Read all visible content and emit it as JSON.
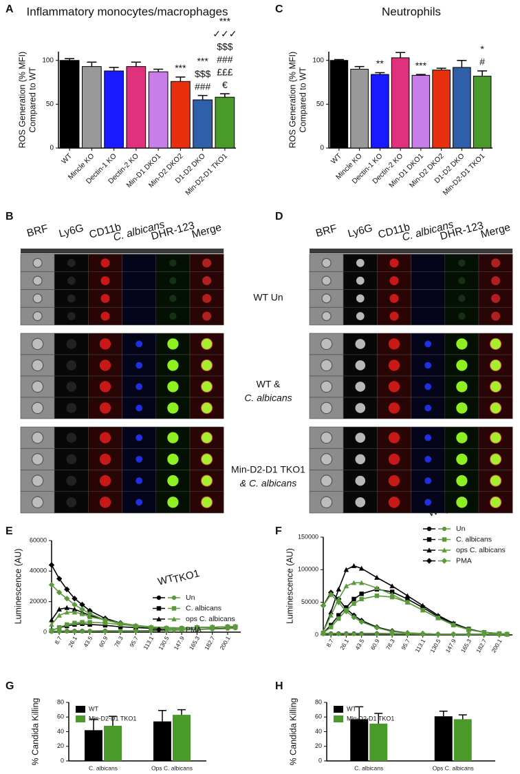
{
  "chart_data": [
    {
      "panel": "A",
      "type": "bar",
      "title": "Inflammatory monocytes/macrophages",
      "y_label": [
        "ROS Generation (% MFI)",
        "Compared to WT"
      ],
      "categories": [
        "WT",
        "Mincle KO",
        "Dectin-1 KO",
        "Dectin-2 KO",
        "Min-D1 DKO1",
        "Min-D2 DKO2",
        "D1-D2 DKO",
        "Min-D2-D1 TKO1"
      ],
      "values": [
        100,
        93,
        88,
        93,
        87,
        76,
        55,
        58
      ],
      "errors": [
        2,
        5,
        4,
        5,
        3,
        5,
        5,
        4
      ],
      "colors": [
        "#000000",
        "#999999",
        "#1a1aff",
        "#e0317e",
        "#c77ee8",
        "#e8300e",
        "#2f5fa8",
        "#4a9a2a"
      ],
      "annotations": [
        [],
        [],
        [],
        [],
        [],
        [
          {
            "text": "***",
            "color": "#000000"
          }
        ],
        [
          {
            "text": "***",
            "color": "#000000"
          },
          {
            "text": "$$$",
            "color": "#3a4fd8"
          },
          {
            "text": "###",
            "color": "#c850c0"
          }
        ],
        [
          {
            "text": "***",
            "color": "#000000"
          },
          {
            "text": "✓✓✓",
            "color": "#888888"
          },
          {
            "text": "$$$",
            "color": "#3a4fd8"
          },
          {
            "text": "###",
            "color": "#c850c0"
          },
          {
            "text": "£££",
            "color": "#c89ee0"
          },
          {
            "text": "€",
            "color": "#d02020"
          }
        ]
      ],
      "ylim": [
        0,
        110
      ],
      "yticks": [
        0,
        50,
        100
      ]
    },
    {
      "panel": "C",
      "type": "bar",
      "title": "Neutrophils",
      "y_label": [
        "ROS Generation (% MFI)",
        "Compared to WT"
      ],
      "categories": [
        "WT",
        "Mincle KO",
        "Dectin-1 KO",
        "Dectin-2 KO",
        "Min-D1 DKO1",
        "Min-D2 DKO2",
        "D1-D2 DKO",
        "Min-D2-D1 TKO1"
      ],
      "values": [
        100,
        90,
        84,
        103,
        83,
        89,
        92,
        82
      ],
      "errors": [
        1,
        3,
        2,
        6,
        1,
        2,
        8,
        6
      ],
      "colors": [
        "#000000",
        "#999999",
        "#1a1aff",
        "#e0317e",
        "#c77ee8",
        "#e8300e",
        "#2f5fa8",
        "#4a9a2a"
      ],
      "annotations": [
        [],
        [],
        [
          {
            "text": "**",
            "color": "#000000"
          }
        ],
        [],
        [
          {
            "text": "***",
            "color": "#000000"
          }
        ],
        [],
        [],
        [
          {
            "text": "*",
            "color": "#000000"
          },
          {
            "text": "#",
            "color": "#e0317e"
          }
        ]
      ],
      "ylim": [
        0,
        110
      ],
      "yticks": [
        0,
        50,
        100
      ]
    },
    {
      "panel": "E",
      "type": "line",
      "y_label": "Luminescence (AU)",
      "x": [
        0,
        8.7,
        17.4,
        26.1,
        34.8,
        43.5,
        60.9,
        78.3,
        95.7,
        113.1,
        130.5,
        147.9,
        165.3,
        182.7,
        200.1,
        208.8
      ],
      "xlim": [
        0,
        215
      ],
      "xticks": [
        8.7,
        26.1,
        43.5,
        60.9,
        78.3,
        95.7,
        113.1,
        130.5,
        147.9,
        165.3,
        182.7,
        200.1
      ],
      "ylim": [
        0,
        60000
      ],
      "yticks": [
        0,
        20000,
        40000,
        60000
      ],
      "series": [
        {
          "name": "Un",
          "group": "WT",
          "color": "#000000",
          "marker": "circle",
          "values": [
            500,
            600,
            700,
            700,
            700,
            700,
            800,
            800,
            900,
            1000,
            1200,
            1500,
            1800,
            2200,
            2500,
            2800
          ]
        },
        {
          "name": "C. albicans",
          "group": "WT",
          "color": "#000000",
          "marker": "square",
          "values": [
            1000,
            3000,
            4000,
            5000,
            5500,
            5000,
            4500,
            3500,
            3000,
            2500,
            2500,
            2500,
            3000,
            3000,
            3500,
            3500
          ]
        },
        {
          "name": "ops C. albicans",
          "group": "WT",
          "color": "#000000",
          "marker": "triangle",
          "values": [
            8000,
            15000,
            16000,
            15000,
            13000,
            11000,
            8000,
            6000,
            4000,
            3000,
            2500,
            2500,
            3000,
            3200,
            3500,
            3600
          ]
        },
        {
          "name": "PMA",
          "group": "WT",
          "color": "#000000",
          "marker": "diamond",
          "values": [
            44000,
            35000,
            28000,
            22000,
            18000,
            14000,
            9000,
            6000,
            4000,
            3000,
            2500,
            2500,
            3000,
            3200,
            3500,
            3600
          ]
        },
        {
          "name": "Un",
          "group": "TKO1",
          "color": "#5a9a3a",
          "marker": "circle",
          "values": [
            300,
            400,
            500,
            500,
            500,
            600,
            600,
            700,
            800,
            900,
            1100,
            1400,
            1700,
            2000,
            2300,
            2600
          ]
        },
        {
          "name": "C. albicans",
          "group": "TKO1",
          "color": "#5a9a3a",
          "marker": "square",
          "values": [
            1000,
            3000,
            5000,
            6000,
            6500,
            6500,
            6000,
            5000,
            4000,
            3000,
            2500,
            2500,
            3000,
            3200,
            3500,
            3600
          ]
        },
        {
          "name": "ops C. albicans",
          "group": "TKO1",
          "color": "#5a9a3a",
          "marker": "triangle",
          "values": [
            5000,
            11000,
            13000,
            13000,
            12000,
            10000,
            8000,
            6000,
            4500,
            3500,
            3000,
            2800,
            3000,
            3200,
            3500,
            3700
          ]
        },
        {
          "name": "PMA",
          "group": "TKO1",
          "color": "#5a9a3a",
          "marker": "diamond",
          "values": [
            31000,
            26000,
            22000,
            18000,
            15000,
            12000,
            8000,
            5500,
            4000,
            3000,
            2500,
            2500,
            3000,
            3200,
            3500,
            3600
          ]
        }
      ]
    },
    {
      "panel": "F",
      "type": "line",
      "y_label": "Luminescence (AU)",
      "x": [
        0,
        8.7,
        17.4,
        26.1,
        34.8,
        43.5,
        60.9,
        78.3,
        95.7,
        113.1,
        130.5,
        147.9,
        165.3,
        182.7,
        200.1,
        208.8
      ],
      "xlim": [
        0,
        215
      ],
      "xticks": [
        8.7,
        26.1,
        43.5,
        60.9,
        78.3,
        95.7,
        113.1,
        130.5,
        147.9,
        165.3,
        182.7,
        200.1
      ],
      "ylim": [
        0,
        150000
      ],
      "yticks": [
        0,
        50000,
        100000,
        150000
      ],
      "series": [
        {
          "name": "Un",
          "group": "WT",
          "color": "#000000",
          "marker": "circle",
          "values": [
            2000,
            2000,
            2000,
            2000,
            2000,
            2000,
            2000,
            1800,
            1500,
            1200,
            1000,
            1000,
            1000,
            1000,
            1000,
            1000
          ]
        },
        {
          "name": "C. albicans",
          "group": "WT",
          "color": "#000000",
          "marker": "square",
          "values": [
            3000,
            15000,
            30000,
            42000,
            55000,
            63000,
            70000,
            66000,
            55000,
            42000,
            28000,
            17000,
            9000,
            4000,
            2000,
            1000
          ]
        },
        {
          "name": "ops C. albicans",
          "group": "WT",
          "color": "#000000",
          "marker": "triangle",
          "values": [
            5000,
            35000,
            70000,
            100000,
            106000,
            102000,
            88000,
            75000,
            60000,
            45000,
            30000,
            18000,
            9000,
            4000,
            2000,
            1000
          ]
        },
        {
          "name": "PMA",
          "group": "WT",
          "color": "#000000",
          "marker": "diamond",
          "values": [
            45000,
            65000,
            55000,
            40000,
            30000,
            22000,
            12000,
            6000,
            3000,
            2000,
            1000,
            1000,
            1000,
            1000,
            1000,
            1000
          ]
        },
        {
          "name": "Un",
          "group": "TKO1",
          "color": "#5a9a3a",
          "marker": "circle",
          "values": [
            1500,
            1500,
            1500,
            1500,
            1500,
            1500,
            1500,
            1400,
            1200,
            1000,
            1000,
            1000,
            1000,
            1000,
            1000,
            1000
          ]
        },
        {
          "name": "C. albicans",
          "group": "TKO1",
          "color": "#5a9a3a",
          "marker": "square",
          "values": [
            3000,
            12000,
            25000,
            38000,
            48000,
            55000,
            60000,
            58000,
            50000,
            38000,
            26000,
            15000,
            8000,
            4000,
            2000,
            1000
          ]
        },
        {
          "name": "ops C. albicans",
          "group": "TKO1",
          "color": "#5a9a3a",
          "marker": "triangle",
          "values": [
            5000,
            30000,
            55000,
            75000,
            80000,
            80000,
            72000,
            62000,
            50000,
            38000,
            26000,
            16000,
            8000,
            4000,
            2000,
            1000
          ]
        },
        {
          "name": "PMA",
          "group": "TKO1",
          "color": "#5a9a3a",
          "marker": "diamond",
          "values": [
            45000,
            62000,
            50000,
            36000,
            27000,
            20000,
            11000,
            5000,
            3000,
            2000,
            1000,
            1000,
            1000,
            1000,
            1000,
            1000
          ]
        }
      ]
    },
    {
      "panel": "G",
      "type": "bar",
      "y_label": "% Candida Killing",
      "categories": [
        "C. albicans",
        "Ops C. albicans"
      ],
      "series": [
        {
          "name": "WT",
          "color": "#000000",
          "values": [
            42,
            54
          ],
          "errors": [
            15,
            15
          ]
        },
        {
          "name": "Min-D2-D1 TKO1",
          "color": "#4a9a2a",
          "values": [
            48,
            63
          ],
          "errors": [
            13,
            7
          ]
        }
      ],
      "ylim": [
        0,
        80
      ],
      "yticks": [
        0,
        20,
        40,
        60,
        80
      ]
    },
    {
      "panel": "H",
      "type": "bar",
      "y_label": "% Candida Killing",
      "categories": [
        "C. albicans",
        "Ops C. albicans"
      ],
      "series": [
        {
          "name": "WT",
          "color": "#000000",
          "values": [
            57,
            61
          ],
          "errors": [
            17,
            7
          ]
        },
        {
          "name": "Min-D2-D1 TKO1",
          "color": "#4a9a2a",
          "values": [
            51,
            57
          ],
          "errors": [
            14,
            6
          ]
        }
      ],
      "ylim": [
        0,
        80
      ],
      "yticks": [
        0,
        20,
        40,
        60,
        80
      ]
    }
  ],
  "image_panels": [
    {
      "panel": "B",
      "channels": [
        "BRF",
        "Ly6G",
        "CD11b",
        "C. albicans",
        "DHR-123",
        "Merge"
      ]
    },
    {
      "panel": "D",
      "channels": [
        "BRF",
        "Ly6G",
        "CD11b",
        "C. albicans",
        "DHR-123",
        "Merge"
      ]
    }
  ],
  "row_labels": [
    [
      "WT Un"
    ],
    [
      "WT &",
      "C. albicans"
    ],
    [
      "Min-D2-D1 TKO1",
      "& C. albicans"
    ]
  ]
}
